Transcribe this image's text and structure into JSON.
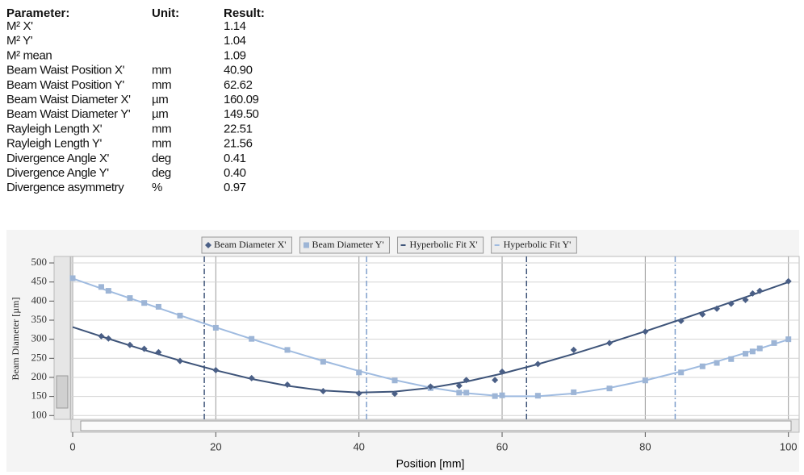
{
  "table": {
    "headers": [
      "Parameter:",
      "Unit:",
      "Result:"
    ],
    "rows": [
      {
        "parameter": "M² X'",
        "result": "1.14"
      },
      {
        "parameter": "M² Y'",
        "result": "1.04"
      },
      {
        "parameter": "M² mean",
        "result": "1.09"
      },
      {
        "parameter": "Beam Waist Position X'",
        "unit": "mm",
        "result": "40.90"
      },
      {
        "parameter": "Beam Waist Position Y'",
        "unit": "mm",
        "result": "62.62"
      },
      {
        "parameter": "Beam Waist Diameter X'",
        "unit": "µm",
        "result": "160.09"
      },
      {
        "parameter": "Beam Waist Diameter Y'",
        "unit": "µm",
        "result": "149.50"
      },
      {
        "parameter": "Rayleigh Length X'",
        "unit": "mm",
        "result": "22.51"
      },
      {
        "parameter": "Rayleigh Length Y'",
        "unit": "mm",
        "result": "21.56"
      },
      {
        "parameter": "Divergence Angle X'",
        "unit": "deg",
        "result": "0.41"
      },
      {
        "parameter": "Divergence Angle Y'",
        "unit": "deg",
        "result": "0.40"
      },
      {
        "parameter": "Divergence asymmetry",
        "unit": "%",
        "result": "0.97"
      }
    ]
  },
  "chart_data": {
    "type": "scatter",
    "x_label": "Position [mm]",
    "y_label": "Beam Diameter [µm]",
    "xlim": [
      0,
      101.5
    ],
    "ylim": [
      90,
      517
    ],
    "xticks": [
      0,
      20,
      40,
      60,
      80,
      100
    ],
    "yticks": [
      100,
      150,
      200,
      250,
      300,
      350,
      400,
      450,
      500
    ],
    "grid": true,
    "legend": "top",
    "series": [
      {
        "name": "Beam Diameter X'",
        "type": "scatter",
        "marker": "diamond",
        "color": "#4a5f86",
        "x": [
          4,
          5,
          8,
          10,
          12,
          15,
          20,
          25,
          30,
          35,
          40,
          45,
          50,
          54,
          55,
          59,
          60,
          65,
          70,
          75,
          80,
          85,
          88,
          90,
          92,
          94,
          95,
          96,
          100
        ],
        "values": [
          308,
          302,
          285,
          275,
          266,
          243,
          219,
          198,
          181,
          164,
          158,
          157,
          176,
          178,
          193,
          193,
          215,
          235,
          272,
          290,
          320,
          348,
          365,
          380,
          393,
          403,
          420,
          427,
          452
        ]
      },
      {
        "name": "Beam Diameter Y'",
        "type": "scatter",
        "marker": "square",
        "color": "#9db5d6",
        "x": [
          0,
          4,
          5,
          8,
          10,
          12,
          15,
          20,
          25,
          30,
          35,
          40,
          45,
          50,
          54,
          55,
          59,
          60,
          65,
          70,
          75,
          80,
          85,
          88,
          90,
          92,
          94,
          95,
          96,
          98,
          100
        ],
        "values": [
          460,
          437,
          427,
          408,
          395,
          385,
          362,
          330,
          301,
          272,
          241,
          213,
          192,
          172,
          160,
          160,
          151,
          153,
          152,
          161,
          171,
          192,
          213,
          229,
          238,
          248,
          262,
          268,
          276,
          290,
          300
        ]
      },
      {
        "name": "Hyperbolic Fit X'",
        "type": "line",
        "color": "#3e5479",
        "x": [
          0,
          5,
          10,
          15,
          20,
          25,
          30,
          35,
          40,
          45,
          50,
          55,
          60,
          65,
          70,
          75,
          80,
          85,
          90,
          95,
          100
        ],
        "values": [
          332.0,
          301.4,
          271.9,
          244.0,
          218.5,
          196.0,
          177.9,
          165.5,
          160.2,
          162.7,
          172.7,
          188.9,
          210.0,
          234.5,
          261.6,
          290.6,
          320.8,
          352.1,
          384.2,
          416.7,
          449.8
        ]
      },
      {
        "name": "Hyperbolic Fit Y'",
        "type": "line",
        "color": "#9fbbe0",
        "x": [
          0,
          5,
          10,
          15,
          20,
          25,
          30,
          35,
          40,
          45,
          50,
          55,
          60,
          65,
          70,
          75,
          80,
          85,
          90,
          95,
          100
        ],
        "values": [
          459.2,
          426.6,
          394.7,
          362.5,
          331.2,
          300.7,
          271.1,
          243.0,
          216.7,
          193.1,
          173.2,
          158.6,
          150.6,
          150.4,
          158.0,
          172.4,
          192.0,
          215.5,
          241.6,
          269.8,
          299.2
        ]
      }
    ],
    "reference_lines": [
      {
        "x": 18.39,
        "color": "#3e5479"
      },
      {
        "x": 63.41,
        "color": "#3e5479"
      },
      {
        "x": 41.06,
        "color": "#7f9fcc"
      },
      {
        "x": 84.18,
        "color": "#7f9fcc"
      }
    ]
  }
}
